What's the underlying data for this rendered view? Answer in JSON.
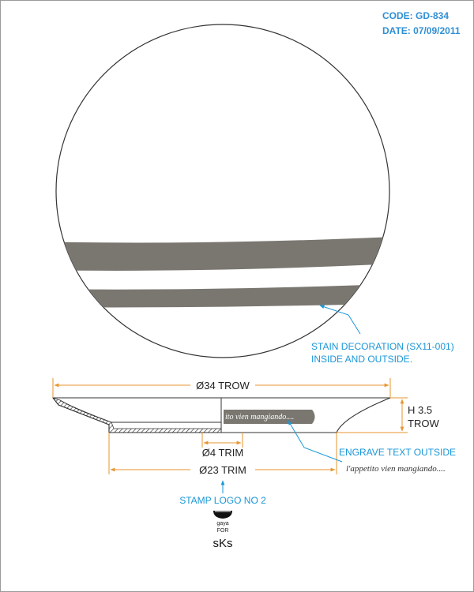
{
  "header": {
    "code": "CODE: GD-834",
    "date": "DATE: 07/09/2011"
  },
  "colors": {
    "stain": "#797770",
    "dimension_line": "#e7962e",
    "note_blue": "#1a97d8",
    "outline": "#333333"
  },
  "annotations": {
    "stain_decoration_line1": "STAIN DECORATION (SX11-001)",
    "stain_decoration_line2": "INSIDE AND OUTSIDE.",
    "engrave_text_outside": "ENGRAVE TEXT OUTSIDE",
    "engrave_text_sample": "l'appetito vien mangiando....",
    "engrave_text_on_plate": "ito vien mangiando....",
    "stamp_logo": "STAMP LOGO NO 2"
  },
  "dimensions": {
    "diameter_top": "Ø34 TROW",
    "height_line1": "H 3.5",
    "height_line2": "TROW",
    "diameter_foot": "Ø4 TRIM",
    "diameter_base": "Ø23 TRIM"
  },
  "logo": {
    "line1": "gaya",
    "line2": "FOR",
    "brand": "sKs"
  }
}
